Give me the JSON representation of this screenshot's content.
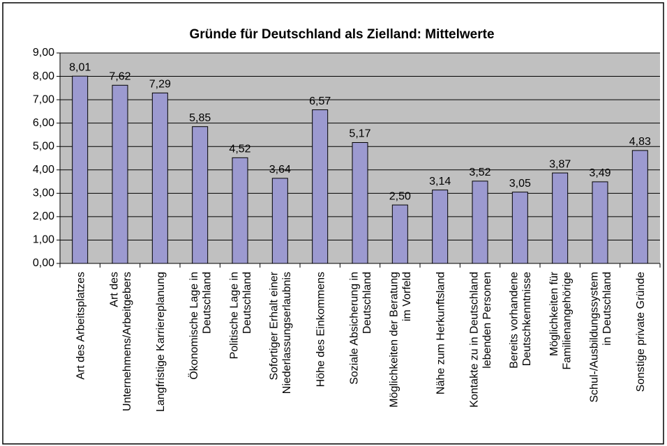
{
  "chart_data": {
    "type": "bar",
    "title": "Gründe für Deutschland als Zielland: Mittelwerte",
    "categories": [
      "Art des Arbeitsplatzes",
      "Art des\nUnternehmens/Arbeitgebers",
      "Langfristige Karriereplanung",
      "Ökonomische Lage in\nDeutschland",
      "Politische Lage in\nDeutschland",
      "Sofortiger Erhalt einer\nNiederlassungserlaubnis",
      "Höhe des Einkommens",
      "Soziale Absicherung in\nDeutschland",
      "Möglichkeiten der Beratung\nim Vorfeld",
      "Nähe zum Herkunftsland",
      "Kontakte zu in Deutschland\nlebenden Personen",
      "Bereits vorhandene\nDeutschkenntnisse",
      "Möglichkeiten für\nFamilienangehörige",
      "Schul-/Ausbildungssystem\nin Deutschland",
      "Sonstige private Gründe"
    ],
    "values": [
      8.01,
      7.62,
      7.29,
      5.85,
      4.52,
      3.64,
      6.57,
      5.17,
      2.5,
      3.14,
      3.52,
      3.05,
      3.87,
      3.49,
      4.83
    ],
    "value_labels": [
      "8,01",
      "7,62",
      "7,29",
      "5,85",
      "4,52",
      "3,64",
      "6,57",
      "5,17",
      "2,50",
      "3,14",
      "3,52",
      "3,05",
      "3,87",
      "3,49",
      "4,83"
    ],
    "color": "#9c9ad0",
    "ylim": [
      0,
      9
    ],
    "yticks": [
      {
        "value": 0,
        "label": "0,00"
      },
      {
        "value": 1,
        "label": "1,00"
      },
      {
        "value": 2,
        "label": "2,00"
      },
      {
        "value": 3,
        "label": "3,00"
      },
      {
        "value": 4,
        "label": "4,00"
      },
      {
        "value": 5,
        "label": "5,00"
      },
      {
        "value": 6,
        "label": "6,00"
      },
      {
        "value": 7,
        "label": "7,00"
      },
      {
        "value": 8,
        "label": "8,00"
      },
      {
        "value": 9,
        "label": "9,00"
      }
    ],
    "grid": true
  }
}
